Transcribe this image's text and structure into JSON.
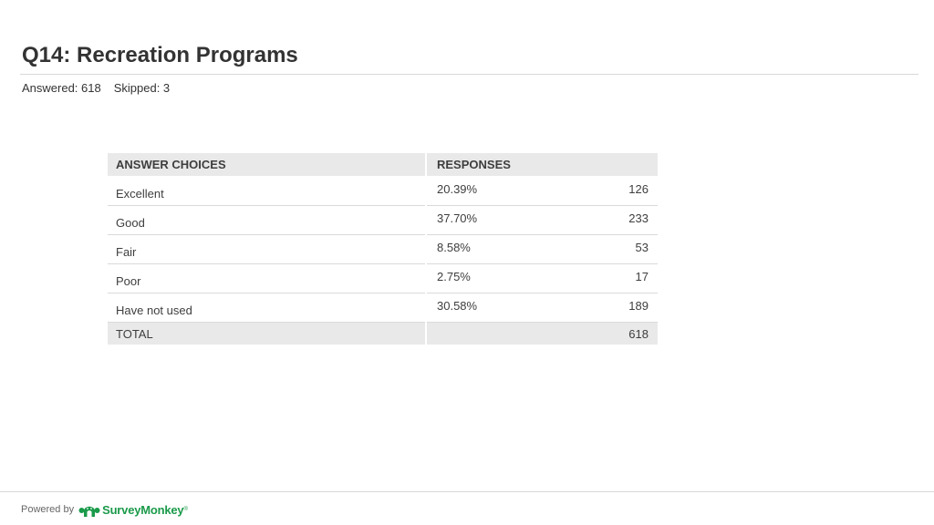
{
  "page": {
    "title": "Q14: Recreation Programs",
    "answered_label": "Answered: 618",
    "skipped_label": "Skipped: 3"
  },
  "table": {
    "headers": {
      "choices": "ANSWER CHOICES",
      "responses": "RESPONSES"
    },
    "rows": [
      {
        "choice": "Excellent",
        "percent": "20.39%",
        "count": "126"
      },
      {
        "choice": "Good",
        "percent": "37.70%",
        "count": "233"
      },
      {
        "choice": "Fair",
        "percent": "8.58%",
        "count": "53"
      },
      {
        "choice": "Poor",
        "percent": "2.75%",
        "count": "17"
      },
      {
        "choice": "Have not used",
        "percent": "30.58%",
        "count": "189"
      }
    ],
    "total": {
      "label": "TOTAL",
      "count": "618"
    }
  },
  "footer": {
    "powered_by": "Powered by",
    "brand": "SurveyMonkey",
    "trademark": "®",
    "brand_color": "#1a9a4a"
  }
}
